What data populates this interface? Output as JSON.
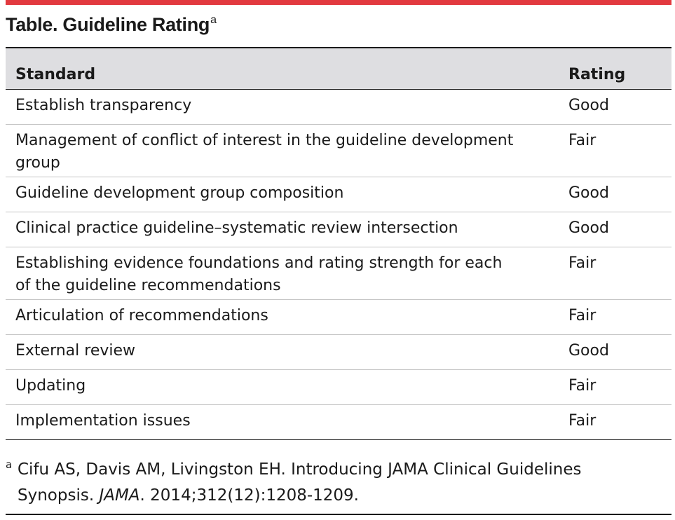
{
  "colors": {
    "accent_rule": "#e2393f",
    "header_bg": "#dedee1"
  },
  "title": {
    "text": "Table. Guideline Rating",
    "superscript": "a"
  },
  "table": {
    "headers": {
      "standard": "Standard",
      "rating": "Rating"
    },
    "rows": [
      {
        "standard": "Establish transparency",
        "rating": "Good"
      },
      {
        "standard": "Management of conflict of interest in the guideline development",
        "standard_cont": "group",
        "rating": "Fair"
      },
      {
        "standard": "Guideline development group composition",
        "rating": "Good"
      },
      {
        "standard": "Clinical practice guideline–systematic review intersection",
        "rating": "Good"
      },
      {
        "standard": "Establishing evidence foundations and rating strength for each",
        "standard_cont": "of the guideline recommendations",
        "rating": "Fair"
      },
      {
        "standard": "Articulation of recommendations",
        "rating": "Fair"
      },
      {
        "standard": "External review",
        "rating": "Good"
      },
      {
        "standard": "Updating",
        "rating": "Fair"
      },
      {
        "standard": "Implementation issues",
        "rating": "Fair"
      }
    ]
  },
  "footnote": {
    "mark": "a",
    "line1": "Cifu AS, Davis AM, Livingston EH. Introducing JAMA Clinical Guidelines",
    "line2_pre": "Synopsis. ",
    "journal": "JAMA",
    "line2_post": ". 2014;312(12):1208-1209."
  }
}
